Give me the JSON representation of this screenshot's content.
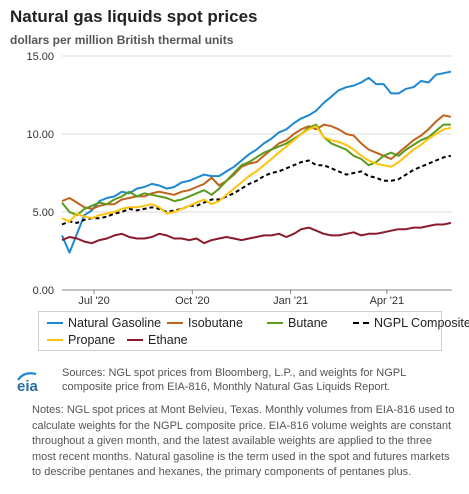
{
  "header": {
    "title": "Natural gas liquids spot prices",
    "subtitle": "dollars per million British thermal units"
  },
  "logo_text": "eia",
  "footer": {
    "sources": "Sources: NGL spot prices from Bloomberg, L.P., and weights for NGPL composite price from EIA-816, Monthly Natural Gas Liquids Report.",
    "notes": "Notes: NGL spot prices at Mont Belvieu, Texas. Monthly volumes from EIA-816 used to calculate weights for the NGPL composite price. EIA-816 volume weights are constant throughout a given month, and the latest available weights are applied to the three most recent months. Natural gasoline is the term used in the spot and futures markets to describe pentanes and hexanes, the primary components of pentanes plus."
  },
  "chart_data": {
    "type": "line",
    "x_start": "2020-06-01",
    "x_end": "2021-06-01",
    "x_ticks": [
      {
        "label": "Jul '20",
        "date": "2020-07-01"
      },
      {
        "label": "Oct '20",
        "date": "2020-10-01"
      },
      {
        "label": "Jan '21",
        "date": "2021-01-01"
      },
      {
        "label": "Apr '21",
        "date": "2021-04-01"
      }
    ],
    "ylim": [
      0,
      15
    ],
    "y_ticks": [
      "0.00",
      "5.00",
      "10.00",
      "15.00"
    ],
    "grid": "horizontal",
    "legend_position": "bottom",
    "dates": [
      "2020-06-01",
      "2020-06-08",
      "2020-06-15",
      "2020-06-22",
      "2020-06-29",
      "2020-07-06",
      "2020-07-13",
      "2020-07-20",
      "2020-07-27",
      "2020-08-03",
      "2020-08-10",
      "2020-08-17",
      "2020-08-24",
      "2020-08-31",
      "2020-09-07",
      "2020-09-14",
      "2020-09-21",
      "2020-09-28",
      "2020-10-05",
      "2020-10-12",
      "2020-10-19",
      "2020-10-26",
      "2020-11-02",
      "2020-11-09",
      "2020-11-16",
      "2020-11-23",
      "2020-11-30",
      "2020-12-07",
      "2020-12-14",
      "2020-12-21",
      "2020-12-28",
      "2021-01-04",
      "2021-01-11",
      "2021-01-18",
      "2021-01-25",
      "2021-02-01",
      "2021-02-08",
      "2021-02-15",
      "2021-02-22",
      "2021-03-01",
      "2021-03-08",
      "2021-03-15",
      "2021-03-22",
      "2021-03-29",
      "2021-04-05",
      "2021-04-12",
      "2021-04-19",
      "2021-04-26",
      "2021-05-03",
      "2021-05-10",
      "2021-05-17",
      "2021-05-24",
      "2021-05-31"
    ],
    "series": [
      {
        "name": "Natural Gasoline",
        "color": "#1e88d1",
        "dashed": false,
        "values": [
          3.5,
          2.4,
          3.6,
          4.8,
          5.1,
          5.7,
          5.9,
          6.0,
          6.3,
          6.2,
          6.5,
          6.6,
          6.8,
          6.7,
          6.5,
          6.6,
          6.9,
          7.0,
          7.2,
          7.4,
          7.3,
          7.3,
          7.6,
          7.9,
          8.3,
          8.7,
          9.0,
          9.4,
          9.7,
          10.1,
          10.3,
          10.7,
          11.0,
          11.2,
          11.5,
          12.0,
          12.4,
          12.8,
          13.0,
          13.1,
          13.3,
          13.6,
          13.2,
          13.2,
          12.6,
          12.6,
          12.9,
          13.0,
          13.4,
          13.3,
          13.8,
          13.9,
          14.0
        ]
      },
      {
        "name": "Isobutane",
        "color": "#c0631d",
        "dashed": false,
        "values": [
          5.7,
          5.9,
          5.6,
          5.3,
          5.2,
          5.4,
          5.5,
          5.5,
          5.8,
          5.9,
          6.0,
          6.0,
          6.2,
          6.3,
          6.2,
          6.1,
          6.3,
          6.4,
          6.6,
          6.8,
          7.2,
          6.7,
          7.0,
          7.4,
          7.9,
          8.1,
          8.2,
          8.6,
          9.0,
          9.4,
          9.6,
          10.0,
          10.3,
          10.5,
          10.3,
          10.6,
          10.5,
          10.3,
          10.0,
          9.9,
          9.4,
          9.0,
          8.8,
          8.6,
          8.4,
          8.8,
          9.2,
          9.6,
          9.9,
          10.3,
          10.8,
          11.2,
          11.1
        ]
      },
      {
        "name": "Butane",
        "color": "#5a9a1c",
        "dashed": false,
        "values": [
          5.6,
          5.0,
          4.8,
          5.2,
          5.4,
          5.6,
          5.5,
          5.8,
          6.0,
          6.3,
          6.0,
          6.2,
          6.1,
          6.0,
          5.9,
          5.7,
          5.8,
          6.0,
          6.2,
          6.4,
          6.1,
          6.5,
          7.0,
          7.5,
          8.0,
          8.2,
          8.5,
          8.8,
          9.0,
          9.2,
          9.4,
          9.7,
          10.0,
          10.4,
          10.6,
          9.8,
          9.4,
          9.2,
          9.0,
          8.6,
          8.4,
          8.0,
          8.2,
          8.6,
          8.8,
          8.6,
          9.0,
          9.3,
          9.6,
          9.8,
          10.2,
          10.6,
          10.6
        ]
      },
      {
        "name": "NGPL Composite",
        "color": "#000000",
        "dashed": true,
        "values": [
          4.2,
          4.4,
          4.3,
          4.5,
          4.6,
          4.6,
          4.7,
          4.9,
          5.0,
          5.2,
          5.1,
          5.2,
          5.3,
          5.2,
          5.0,
          5.1,
          5.2,
          5.4,
          5.4,
          5.6,
          5.8,
          5.8,
          6.0,
          6.2,
          6.5,
          6.8,
          7.0,
          7.3,
          7.5,
          7.6,
          7.8,
          8.0,
          8.2,
          8.3,
          8.0,
          8.0,
          7.8,
          7.6,
          7.4,
          7.5,
          7.6,
          7.3,
          7.2,
          7.0,
          7.0,
          7.1,
          7.4,
          7.7,
          7.9,
          8.1,
          8.3,
          8.5,
          8.6
        ]
      },
      {
        "name": "Propane",
        "color": "#ffc20e",
        "dashed": false,
        "values": [
          4.6,
          4.4,
          4.9,
          4.7,
          4.6,
          4.8,
          4.9,
          5.0,
          5.2,
          5.3,
          5.3,
          5.4,
          5.5,
          5.3,
          4.9,
          5.0,
          5.2,
          5.4,
          5.6,
          5.8,
          5.5,
          5.7,
          6.1,
          6.5,
          6.9,
          7.3,
          7.6,
          8.0,
          8.4,
          8.8,
          9.2,
          9.6,
          10.0,
          10.3,
          10.5,
          9.8,
          9.6,
          9.5,
          9.3,
          9.0,
          8.6,
          8.3,
          8.1,
          8.0,
          7.9,
          8.2,
          8.6,
          9.0,
          9.3,
          9.7,
          10.0,
          10.3,
          10.4
        ]
      },
      {
        "name": "Ethane",
        "color": "#8b1a2b",
        "dashed": false,
        "values": [
          3.2,
          3.4,
          3.3,
          3.1,
          3.0,
          3.2,
          3.3,
          3.5,
          3.6,
          3.4,
          3.3,
          3.3,
          3.4,
          3.6,
          3.5,
          3.3,
          3.3,
          3.2,
          3.3,
          3.0,
          3.2,
          3.3,
          3.4,
          3.3,
          3.2,
          3.3,
          3.4,
          3.5,
          3.5,
          3.6,
          3.4,
          3.6,
          3.9,
          4.0,
          3.8,
          3.6,
          3.5,
          3.5,
          3.6,
          3.7,
          3.5,
          3.6,
          3.6,
          3.7,
          3.8,
          3.9,
          3.9,
          4.0,
          4.0,
          4.1,
          4.2,
          4.2,
          4.3
        ]
      }
    ]
  }
}
